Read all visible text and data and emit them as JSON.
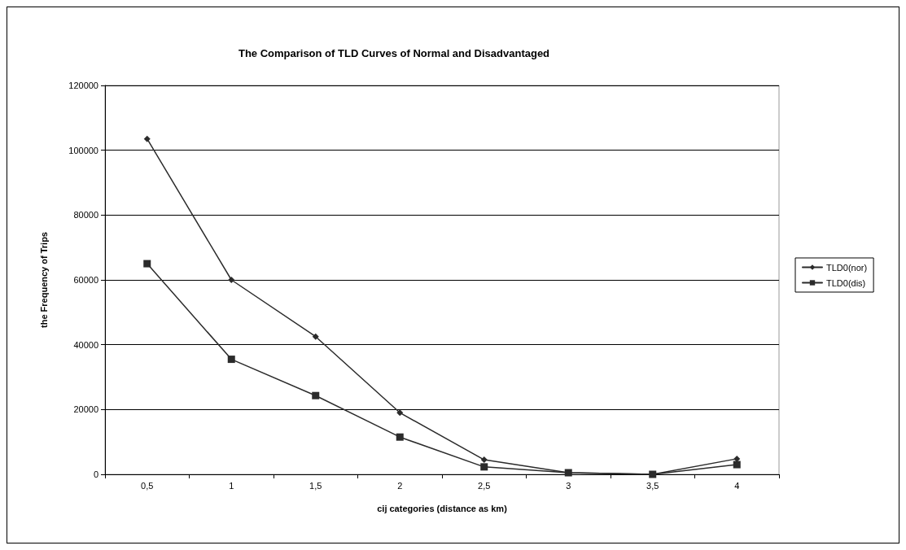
{
  "chart_data": {
    "type": "line",
    "title": "The Comparison of TLD Curves of Normal and Disadvantaged",
    "xlabel": "cij categories (distance as km)",
    "ylabel": "the Frequency of Trips",
    "categories": [
      "0,5",
      "1",
      "1,5",
      "2",
      "2,5",
      "3",
      "3,5",
      "4"
    ],
    "series": [
      {
        "name": "TLD0(nor)",
        "color": "#2b2b2b",
        "marker": "diamond",
        "values": [
          103500,
          60000,
          42500,
          19000,
          4500,
          500,
          0,
          4800
        ]
      },
      {
        "name": "TLD0(dis)",
        "color": "#2b2b2b",
        "marker": "square",
        "values": [
          65000,
          35500,
          24300,
          11500,
          2300,
          500,
          0,
          3000
        ]
      }
    ],
    "ylim": [
      0,
      120000
    ],
    "yticks": [
      0,
      20000,
      40000,
      60000,
      80000,
      100000,
      120000
    ],
    "grid": "y",
    "legend": "right"
  }
}
